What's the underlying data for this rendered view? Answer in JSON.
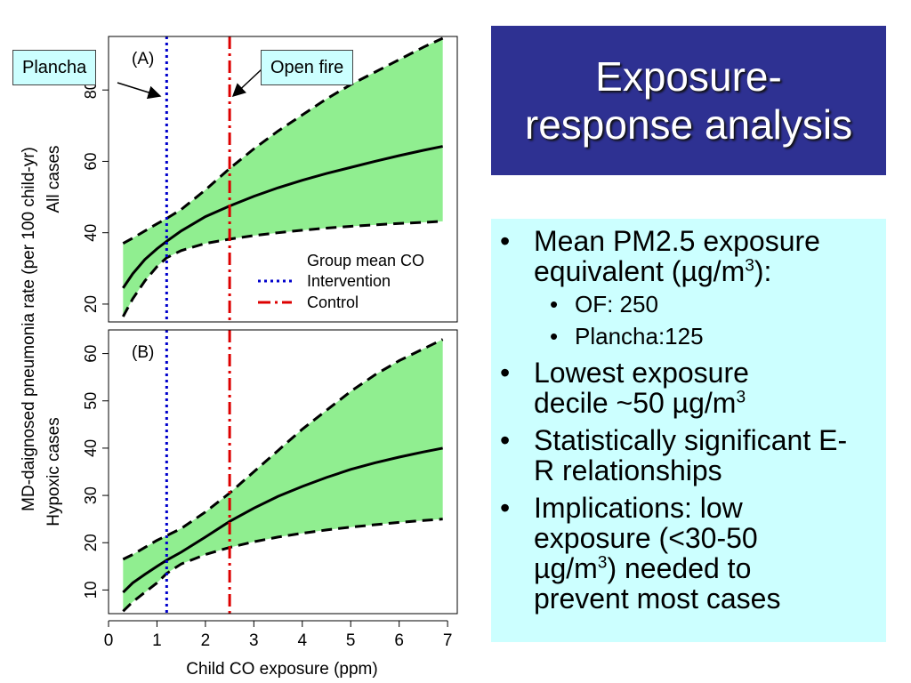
{
  "slide": {
    "title_line1": "Exposure-",
    "title_line2": "response analysis",
    "bullets": [
      {
        "text": "Mean PM2.5 exposure equivalent (µg/m",
        "sup": "3",
        "after": "):",
        "sub": [
          "OF: 250",
          "Plancha:125"
        ]
      },
      {
        "text": "Lowest exposure decile ~50 µg/m",
        "sup": "3",
        "after": ""
      },
      {
        "text": "Statistically significant E-R relationships",
        "sup": "",
        "after": ""
      },
      {
        "text": "Implications: low exposure (<30-50 µg/m",
        "sup": "3",
        "after": ") needed to prevent most cases"
      }
    ]
  },
  "callouts": {
    "plancha": "Plancha",
    "open_fire": "Open fire"
  },
  "colors": {
    "band": "#90ee90",
    "intervention": "#0000cc",
    "control": "#dd0000",
    "title_bg": "#2e3192",
    "bullet_bg": "#ccffff"
  },
  "chart_data": [
    {
      "type": "line",
      "panel_label": "(A)",
      "ylabel": "All cases",
      "shared_ylabel": "MD-daignosed pneumonia rate (per 100 child-yr)",
      "xlim": [
        0,
        7.2
      ],
      "ylim": [
        15,
        95
      ],
      "yticks": [
        20,
        40,
        60,
        80
      ],
      "x": [
        0.3,
        0.5,
        0.75,
        1.0,
        1.2,
        1.5,
        2.0,
        2.5,
        3.0,
        3.5,
        4.0,
        4.5,
        5.0,
        5.5,
        6.0,
        6.5,
        6.9
      ],
      "series": [
        {
          "role": "central",
          "values": [
            24.5,
            28.5,
            32.5,
            35.5,
            37.6,
            40.5,
            44.5,
            47.5,
            50.2,
            52.6,
            54.7,
            56.6,
            58.3,
            60.0,
            61.6,
            63.1,
            64.2
          ]
        },
        {
          "role": "upper",
          "values": [
            37,
            38.5,
            40.5,
            42.5,
            44,
            46.5,
            52,
            58,
            63.5,
            68.5,
            73,
            77.5,
            81.5,
            85,
            88.5,
            92,
            94.5
          ]
        },
        {
          "role": "lower",
          "values": [
            16.5,
            21.5,
            26.5,
            30.5,
            33,
            35,
            37,
            38.2,
            39.2,
            40,
            40.7,
            41.3,
            41.8,
            42.2,
            42.6,
            42.9,
            43.2
          ]
        }
      ],
      "vlines": [
        {
          "x": 1.2,
          "series": "Intervention"
        },
        {
          "x": 2.5,
          "series": "Control"
        }
      ],
      "legend": {
        "title": "Group mean CO",
        "entries": [
          "Intervention",
          "Control"
        ],
        "placement": "bottom-right"
      }
    },
    {
      "type": "line",
      "panel_label": "(B)",
      "ylabel": "Hypoxic cases",
      "xlabel": "Child CO exposure (ppm)",
      "xlim": [
        0,
        7.2
      ],
      "ylim": [
        5,
        65
      ],
      "yticks": [
        10,
        20,
        30,
        40,
        50,
        60
      ],
      "xticks": [
        0,
        1,
        2,
        3,
        4,
        5,
        6,
        7
      ],
      "x": [
        0.3,
        0.5,
        0.75,
        1.0,
        1.2,
        1.5,
        2.0,
        2.5,
        3.0,
        3.5,
        4.0,
        4.5,
        5.0,
        5.5,
        6.0,
        6.5,
        6.9
      ],
      "series": [
        {
          "role": "central",
          "values": [
            9.5,
            11.5,
            13.3,
            15.0,
            16.3,
            18.0,
            21.2,
            24.5,
            27.3,
            29.8,
            31.9,
            33.8,
            35.5,
            36.9,
            38.1,
            39.2,
            40.0
          ]
        },
        {
          "role": "upper",
          "values": [
            16.5,
            17.5,
            19,
            20.5,
            21.5,
            23,
            26.5,
            30.5,
            35,
            39.5,
            44,
            48,
            52,
            55.5,
            58.5,
            61,
            63
          ]
        },
        {
          "role": "lower",
          "values": [
            5.5,
            7.5,
            9.5,
            11.5,
            13.5,
            15.5,
            17.5,
            19,
            20.2,
            21.2,
            22,
            22.7,
            23.3,
            23.8,
            24.3,
            24.7,
            25
          ]
        }
      ],
      "vlines": [
        {
          "x": 1.2,
          "series": "Intervention"
        },
        {
          "x": 2.5,
          "series": "Control"
        }
      ]
    }
  ]
}
